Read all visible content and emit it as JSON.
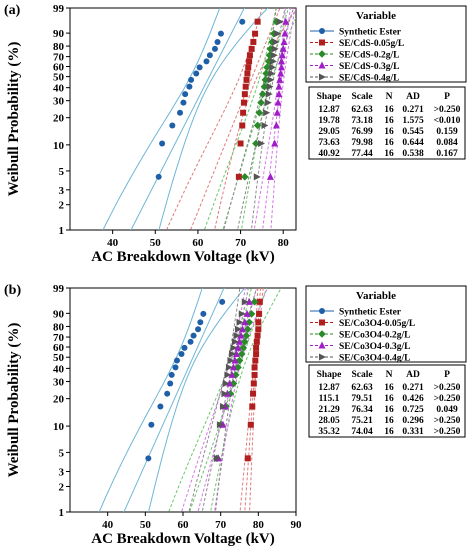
{
  "chart_data": [
    {
      "type": "scatter",
      "panel_label": "(a)",
      "xlabel": "AC Breakdown Voltage (kV)",
      "ylabel": "Weibull Probability (%)",
      "xlim": [
        30,
        83
      ],
      "x_ticks": [
        40,
        50,
        60,
        70,
        80
      ],
      "y_ticks": [
        1,
        2,
        3,
        5,
        10,
        20,
        30,
        40,
        50,
        60,
        70,
        80,
        90,
        99
      ],
      "yscale": "weibull",
      "legend_title": "Variable",
      "legend_position": "top-right",
      "series": [
        {
          "name": "Synthetic Ester",
          "color": "#1f5fa8",
          "marker": "circle",
          "shape": 12.87,
          "scale": 62.63,
          "ci_color": "#6fb6d6",
          "x": [
            50.8,
            51.6,
            54.0,
            55.8,
            56.6,
            57.0,
            58.0,
            58.4,
            59.6,
            60.4,
            62.0,
            62.8,
            64.0,
            64.6,
            65.4,
            70.4
          ]
        },
        {
          "name": "SE/CdS-0.05g/L",
          "color": "#b01e1e",
          "marker": "square",
          "shape": 19.78,
          "scale": 73.18,
          "ci_color": "#e07a7a",
          "x": [
            69.6,
            70.0,
            70.4,
            70.6,
            70.8,
            71.0,
            71.2,
            71.4,
            71.6,
            71.8,
            72.0,
            72.2,
            72.6,
            73.0,
            73.4,
            74.0
          ]
        },
        {
          "name": "SE/CdS-0.2g/L",
          "color": "#2a8a2a",
          "marker": "diamond",
          "shape": 29.05,
          "scale": 76.99,
          "ci_color": "#6cc66c",
          "x": [
            71.0,
            73.6,
            74.0,
            74.4,
            74.8,
            75.2,
            75.6,
            75.8,
            76.0,
            76.2,
            76.6,
            76.8,
            77.0,
            77.4,
            77.8,
            78.4
          ]
        },
        {
          "name": "SE/CdS-0.3g/L",
          "color": "#a01ec8",
          "marker": "triangle-up",
          "shape": 73.63,
          "scale": 79.98,
          "ci_color": "#d47ae8",
          "x": [
            77.0,
            78.0,
            78.4,
            78.6,
            78.8,
            79.0,
            79.0,
            79.2,
            79.4,
            79.6,
            79.6,
            79.8,
            80.0,
            80.2,
            80.4,
            80.6
          ]
        },
        {
          "name": "SE/CdS-0.4g/L",
          "color": "#555555",
          "marker": "triangle-right",
          "shape": 40.92,
          "scale": 77.44,
          "ci_color": "#8a8a8a",
          "x": [
            73.8,
            74.8,
            75.6,
            76.0,
            76.4,
            76.6,
            76.8,
            77.0,
            77.2,
            77.4,
            77.6,
            77.8,
            78.0,
            78.2,
            78.6,
            79.2
          ]
        }
      ],
      "stats_table": {
        "headers": [
          "Shape",
          "Scale",
          "N",
          "AD",
          "P"
        ],
        "rows": [
          [
            "12.87",
            "62.63",
            "16",
            "0.271",
            ">0.250"
          ],
          [
            "19.78",
            "73.18",
            "16",
            "1.575",
            "<0.010"
          ],
          [
            "29.05",
            "76.99",
            "16",
            "0.545",
            "0.159"
          ],
          [
            "73.63",
            "79.98",
            "16",
            "0.644",
            "0.084"
          ],
          [
            "40.92",
            "77.44",
            "16",
            "0.538",
            "0.167"
          ]
        ]
      }
    },
    {
      "type": "scatter",
      "panel_label": "(b)",
      "xlabel": "AC Breakdown Voltage (kV)",
      "ylabel": "Weibull Probability (%)",
      "xlim": [
        30,
        90
      ],
      "x_ticks": [
        40,
        50,
        60,
        70,
        80,
        90
      ],
      "y_ticks": [
        1,
        2,
        3,
        5,
        10,
        20,
        30,
        40,
        50,
        60,
        70,
        80,
        90,
        99
      ],
      "yscale": "weibull",
      "legend_title": "Variable",
      "legend_position": "top-right",
      "series": [
        {
          "name": "Synthetic Ester",
          "color": "#1f5fa8",
          "marker": "circle",
          "shape": 12.87,
          "scale": 62.63,
          "ci_color": "#6fb6d6",
          "x": [
            50.8,
            51.6,
            54.0,
            55.8,
            56.6,
            57.0,
            58.0,
            58.4,
            59.6,
            60.4,
            62.0,
            62.8,
            64.0,
            64.6,
            65.4,
            70.4
          ]
        },
        {
          "name": "SE/Co3O4-0.05g/L",
          "color": "#b01e1e",
          "marker": "square",
          "shape": 115.1,
          "scale": 79.51,
          "ci_color": "#e07a7a",
          "x": [
            77.2,
            78.0,
            78.4,
            78.6,
            78.8,
            79.0,
            79.0,
            79.2,
            79.4,
            79.4,
            79.6,
            79.8,
            80.0,
            80.0,
            80.2,
            80.4
          ]
        },
        {
          "name": "SE/Co3O4-0.2g/L",
          "color": "#2a8a2a",
          "marker": "diamond",
          "shape": 21.29,
          "scale": 76.34,
          "ci_color": "#6cc66c",
          "x": [
            69.0,
            70.0,
            71.4,
            72.6,
            73.4,
            74.0,
            74.6,
            75.0,
            75.6,
            76.0,
            76.4,
            76.8,
            77.2,
            77.6,
            78.2,
            79.0
          ]
        },
        {
          "name": "SE/Co3O4-0.3g/L",
          "color": "#a01ec8",
          "marker": "triangle-up",
          "shape": 28.05,
          "scale": 75.21,
          "ci_color": "#d47ae8",
          "x": [
            69.4,
            70.6,
            71.2,
            71.8,
            72.4,
            73.0,
            73.4,
            73.8,
            74.2,
            74.6,
            75.0,
            75.4,
            75.8,
            76.4,
            77.0,
            77.6
          ]
        },
        {
          "name": "SE/Co3O4-0.4g/L",
          "color": "#555555",
          "marker": "triangle-right",
          "shape": 35.32,
          "scale": 74.04,
          "ci_color": "#8a8a8a",
          "x": [
            69.0,
            69.8,
            70.6,
            71.0,
            71.4,
            71.8,
            72.2,
            72.6,
            73.0,
            73.4,
            73.8,
            74.2,
            74.6,
            75.0,
            75.6,
            76.4
          ]
        }
      ],
      "stats_table": {
        "headers": [
          "Shape",
          "Scale",
          "N",
          "AD",
          "P"
        ],
        "rows": [
          [
            "12.87",
            "62.63",
            "16",
            "0.271",
            ">0.250"
          ],
          [
            "115.1",
            "79.51",
            "16",
            "0.426",
            ">0.250"
          ],
          [
            "21.29",
            "76.34",
            "16",
            "0.725",
            "0.049"
          ],
          [
            "28.05",
            "75.21",
            "16",
            "0.296",
            ">0.250"
          ],
          [
            "35.32",
            "74.04",
            "16",
            "0.331",
            ">0.250"
          ]
        ]
      }
    }
  ]
}
